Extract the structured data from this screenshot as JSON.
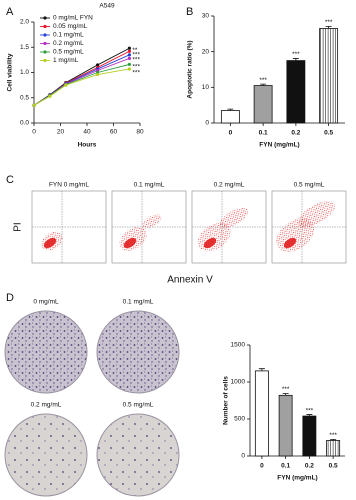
{
  "panel_labels": [
    "A",
    "B",
    "C",
    "D"
  ],
  "chart_data": [
    {
      "type": "line",
      "title": "A549",
      "x_label": "Hours",
      "y_label": "Cell viability",
      "x": [
        0,
        12,
        24,
        48,
        72
      ],
      "xlim": [
        0,
        80
      ],
      "xticks": [
        0,
        20,
        40,
        60,
        80
      ],
      "ylim": [
        0,
        2.0
      ],
      "yticks": [
        {
          "value": 0,
          "label": "0.0"
        },
        0.5,
        {
          "value": 1.0,
          "label": "1.0"
        },
        1.5,
        {
          "value": 2.0,
          "label": "2.0"
        }
      ],
      "series": [
        {
          "name": "0 mg/mL FYN",
          "color": "#111111",
          "values": [
            0.35,
            0.56,
            0.8,
            1.15,
            1.48
          ]
        },
        {
          "name": "0.05 mg/mL",
          "color": "#e8152b",
          "values": [
            0.35,
            0.55,
            0.79,
            1.1,
            1.42
          ],
          "annotation": "**"
        },
        {
          "name": "0.1 mg/mL",
          "color": "#2541d6",
          "values": [
            0.35,
            0.55,
            0.78,
            1.07,
            1.35
          ],
          "annotation": "***"
        },
        {
          "name": "0.2 mg/mL",
          "color": "#b530c4",
          "values": [
            0.35,
            0.54,
            0.77,
            1.04,
            1.28
          ],
          "annotation": "***"
        },
        {
          "name": "0.5 mg/mL",
          "color": "#2e9e3c",
          "values": [
            0.35,
            0.54,
            0.76,
            1.0,
            1.16
          ],
          "annotation": "***"
        },
        {
          "name": "1 mg/mL",
          "color": "#b7cf1c",
          "values": [
            0.35,
            0.53,
            0.75,
            0.96,
            1.07
          ],
          "annotation": "***"
        }
      ]
    },
    {
      "type": "bar",
      "x_label": "FYN (mg/mL)",
      "y_label": "Apoptotic ratio (%)",
      "categories": [
        "0",
        "0.1",
        "0.2",
        "0.5"
      ],
      "values": [
        3.5,
        10.5,
        17.5,
        26.5
      ],
      "errors": [
        0.4,
        0.4,
        0.6,
        0.6
      ],
      "colors": [
        "#ffffff",
        "#a0a0a0",
        "#111111",
        "#ffffff"
      ],
      "hatched": [
        false,
        false,
        false,
        true
      ],
      "annotations": [
        null,
        "***",
        "***",
        "***"
      ],
      "ylim": [
        0,
        30
      ],
      "yticks": [
        0,
        10,
        20,
        30
      ]
    },
    {
      "type": "bar",
      "x_label": "FYN (mg/mL)",
      "y_label": "Number of cells",
      "categories": [
        "0",
        "0.1",
        "0.2",
        "0.5"
      ],
      "values": [
        1150,
        820,
        540,
        210
      ],
      "errors": [
        30,
        25,
        20,
        15
      ],
      "colors": [
        "#ffffff",
        "#a0a0a0",
        "#111111",
        "#ffffff"
      ],
      "hatched": [
        false,
        false,
        false,
        true
      ],
      "annotations": [
        null,
        "***",
        "***",
        "***"
      ],
      "ylim": [
        0,
        1500
      ],
      "yticks": [
        0,
        500,
        1000,
        1500
      ]
    }
  ],
  "flow": {
    "panels": [
      "FYN 0 mg/mL",
      "0.1 mg/mL",
      "0.2 mg/mL",
      "0.5 mg/mL"
    ],
    "y_label": "PI",
    "x_label": "Annexin V"
  },
  "colony": {
    "labels": [
      "0 mg/mL",
      "0.1 mg/mL",
      "0.2 mg/mL",
      "0.5 mg/mL"
    ]
  }
}
